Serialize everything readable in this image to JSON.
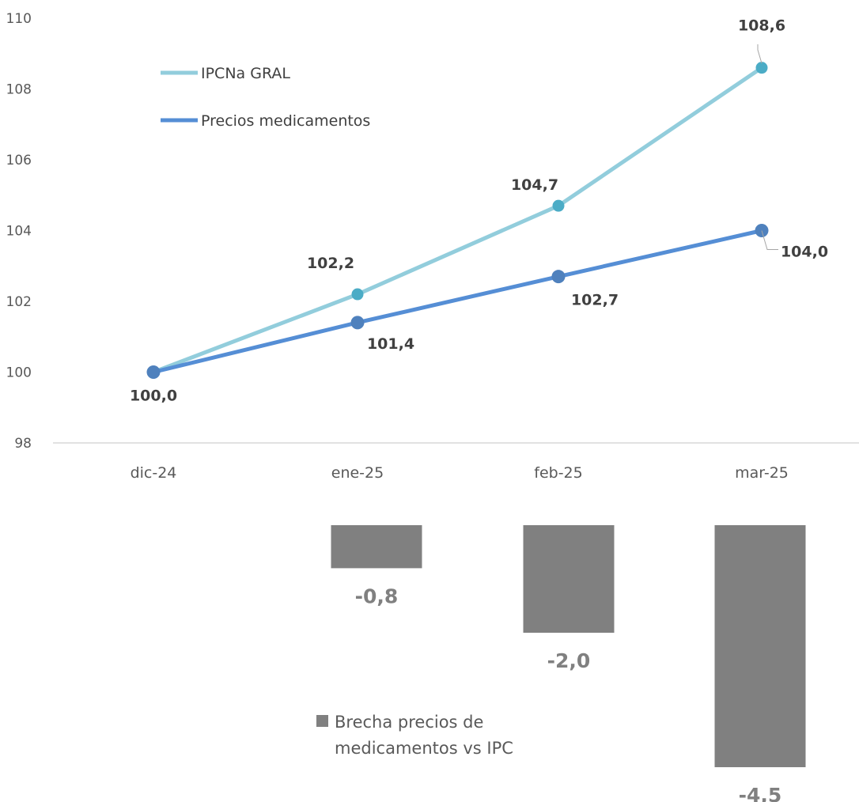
{
  "chart_data": [
    {
      "type": "line",
      "categories": [
        "dic-24",
        "ene-25",
        "feb-25",
        "mar-25"
      ],
      "ylim": [
        98,
        110
      ],
      "yticks": [
        "98",
        "100",
        "102",
        "104",
        "106",
        "108",
        "110"
      ],
      "grid": false,
      "legend_position": "top-left",
      "series": [
        {
          "name": "IPCNa GRAL",
          "values": [
            100.0,
            102.2,
            104.7,
            108.6
          ],
          "labels": [
            "",
            "102,2",
            "104,7",
            "108,6"
          ],
          "color": "#92CDDC",
          "marker_color": "#4BACC6"
        },
        {
          "name": "Precios medicamentos",
          "values": [
            100.0,
            101.4,
            102.7,
            104.0
          ],
          "labels": [
            "100,0",
            "101,4",
            "102,7",
            "104,0"
          ],
          "color": "#558ED5",
          "marker_color": "#4F81BD"
        }
      ]
    },
    {
      "type": "bar",
      "categories": [
        "ene-25",
        "feb-25",
        "mar-25"
      ],
      "series": [
        {
          "name": "Brecha precios de medicamentos vs IPC",
          "name_lines": [
            "Brecha precios de",
            "medicamentos vs IPC"
          ],
          "values": [
            -0.8,
            -2.0,
            -4.5
          ],
          "labels": [
            "-0,8",
            "-2,0",
            "-4,5"
          ],
          "color": "#808080"
        }
      ]
    }
  ]
}
